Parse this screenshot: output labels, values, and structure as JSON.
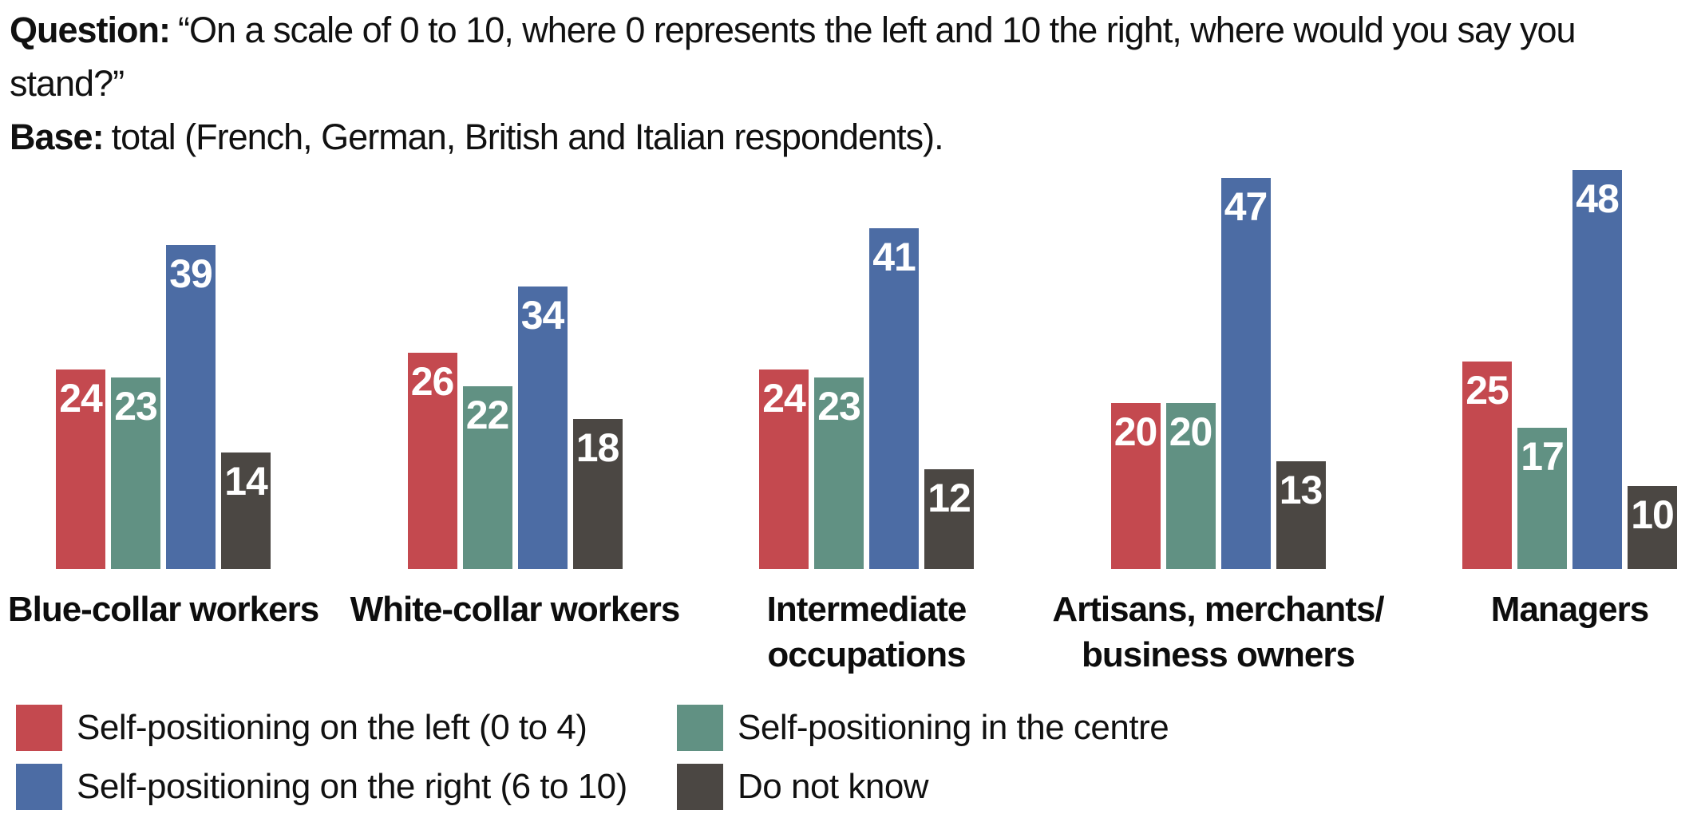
{
  "header": {
    "question_label": "Question:",
    "question_text": "“On a scale of 0 to 10, where 0 represents the left and 10 the right, where would you say you stand?”",
    "base_label": "Base:",
    "base_text": "total (French, German, British and Italian respondents)."
  },
  "colors": {
    "left": "#C4494F",
    "centre": "#619183",
    "right": "#4C6CA4",
    "dnk": "#4B4743"
  },
  "chart_data": {
    "type": "bar",
    "categories": [
      "Blue-collar workers",
      "White-collar workers",
      "Intermediate\noccupations",
      "Artisans, merchants/\nbusiness owners",
      "Managers"
    ],
    "series": [
      {
        "name": "Self-positioning on the left (0 to 4)",
        "color": "#C4494F",
        "values": [
          24,
          26,
          24,
          20,
          25
        ]
      },
      {
        "name": "Self-positioning in the centre",
        "color": "#619183",
        "values": [
          23,
          22,
          23,
          20,
          17
        ]
      },
      {
        "name": "Self-positioning on the right (6 to 10)",
        "color": "#4C6CA4",
        "values": [
          39,
          34,
          41,
          47,
          48
        ]
      },
      {
        "name": "Do not know",
        "color": "#4B4743",
        "values": [
          14,
          18,
          12,
          13,
          10
        ]
      }
    ],
    "ylim": [
      0,
      48
    ],
    "grid": "off",
    "axes": "hidden",
    "value_labels": "inside-top-white-bold",
    "legend_position": "bottom-two-columns"
  },
  "legend": {
    "items": [
      {
        "label": "Self-positioning on the left (0 to 4)",
        "color_key": "left"
      },
      {
        "label": "Self-positioning in the centre",
        "color_key": "centre"
      },
      {
        "label": "Self-positioning on the right (6 to 10)",
        "color_key": "right"
      },
      {
        "label": "Do not know",
        "color_key": "dnk"
      }
    ]
  }
}
